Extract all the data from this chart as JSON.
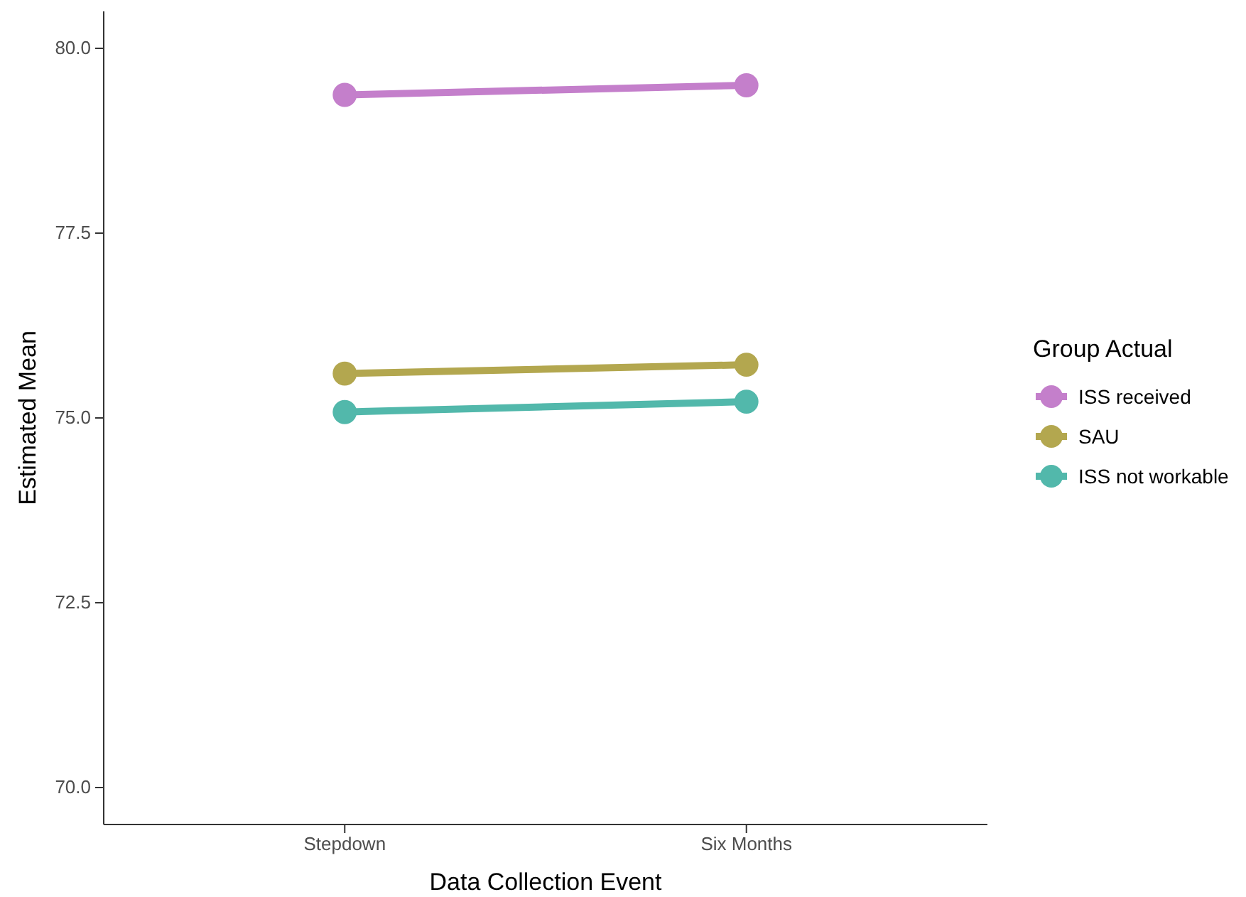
{
  "chart_data": {
    "type": "line",
    "xlabel": "Data Collection Event",
    "ylabel": "Estimated Mean",
    "legend_title": "Group Actual",
    "categories": [
      "Stepdown",
      "Six Months"
    ],
    "series": [
      {
        "name": "ISS received",
        "color": "#c47fcb",
        "values": [
          79.37,
          79.5
        ]
      },
      {
        "name": "SAU",
        "color": "#b3a74f",
        "values": [
          75.6,
          75.72
        ]
      },
      {
        "name": "ISS not workable",
        "color": "#52b8ab",
        "values": [
          75.08,
          75.22
        ]
      }
    ],
    "ylim": [
      69.5,
      80.5
    ],
    "yticks": [
      {
        "value": 70,
        "label": "70.0"
      },
      {
        "value": 72.5,
        "label": "72.5"
      },
      {
        "value": 75,
        "label": "75.0"
      },
      {
        "value": 77.5,
        "label": "77.5"
      },
      {
        "value": 80,
        "label": "80.0"
      }
    ],
    "grid": false,
    "legend": "right",
    "marker": "circle",
    "line_style": "solid"
  }
}
